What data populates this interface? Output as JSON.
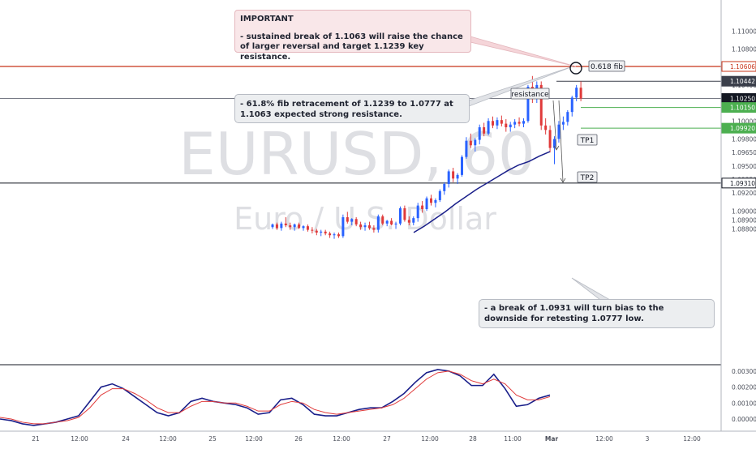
{
  "chart_data": [
    {
      "type": "candlestick",
      "watermark": {
        "symbol": "EURUSD, 60",
        "name": "Euro / U.S. Dollar"
      },
      "ylim": [
        1.0872,
        1.1112
      ],
      "y_ticks": [
        "1.11000",
        "1.10800",
        "1.10400",
        "1.10200",
        "1.10000",
        "1.09800",
        "1.09650",
        "1.09500",
        "1.09350",
        "1.09200",
        "1.09000",
        "1.08900",
        "1.08800"
      ],
      "x_ticks": [
        "21",
        "12:00",
        "24",
        "12:00",
        "25",
        "12:00",
        "26",
        "12:00",
        "27",
        "12:00",
        "28",
        "11:00",
        "Mar",
        "12:00",
        "3",
        "12:00"
      ],
      "price_labels": [
        {
          "value": "1.10606",
          "color": "#c8341a",
          "text_color": "#c8341a",
          "background": "#ffffff"
        },
        {
          "value": "1.10442",
          "color": "#3a3f4b",
          "text_color": "#ffffff",
          "background": "#3a3f4b"
        },
        {
          "value": "1.10250",
          "color": "#131722",
          "text_color": "#ffffff",
          "background": "#131722"
        },
        {
          "value": "1.10150",
          "color": "#4caf50",
          "text_color": "#ffffff",
          "background": "#4caf50"
        },
        {
          "value": "1.09920",
          "color": "#4caf50",
          "text_color": "#ffffff",
          "background": "#4caf50"
        },
        {
          "value": "1.09310",
          "color": "#131722",
          "text_color": "#131722",
          "background": "#ffffff"
        }
      ],
      "horizontal_lines": [
        {
          "price": 1.10606,
          "color": "#c8341a"
        },
        {
          "price": 1.10442,
          "color": "#3a3f4b"
        },
        {
          "price": 1.1025,
          "color": "#787b86"
        },
        {
          "price": 1.1015,
          "color": "#4caf50"
        },
        {
          "price": 1.0992,
          "color": "#4caf50"
        },
        {
          "price": 1.0931,
          "color": "#131722"
        }
      ],
      "labels": {
        "fib": "0.618 fib",
        "resistance": "resistance",
        "tp1": "TP1",
        "tp2": "TP2"
      },
      "colors": {
        "up": "#2962ff",
        "down": "#e03a3a",
        "moving_average": "#1a1f8a"
      },
      "moving_average": [
        [
          1.0876,
          1.0883
        ],
        [
          1.0883,
          1.0891
        ],
        [
          1.0891,
          1.0899
        ],
        [
          1.0899,
          1.0908
        ],
        [
          1.0908,
          1.0916
        ],
        [
          1.0916,
          1.0924
        ],
        [
          1.0924,
          1.0931
        ],
        [
          1.0931,
          1.0938
        ],
        [
          1.0938,
          1.0945
        ],
        [
          1.0945,
          1.0951
        ],
        [
          1.0951,
          1.0955
        ],
        [
          1.0955,
          1.0961
        ],
        [
          1.0961,
          1.0966
        ]
      ],
      "candles": [
        [
          1.0882,
          1.0886,
          1.088,
          1.0885
        ],
        [
          1.0885,
          1.0887,
          1.0879,
          1.0881
        ],
        [
          1.0881,
          1.0888,
          1.0878,
          1.0886
        ],
        [
          1.0886,
          1.0893,
          1.0882,
          1.0884
        ],
        [
          1.0884,
          1.0887,
          1.0879,
          1.0882
        ],
        [
          1.0882,
          1.0886,
          1.0878,
          1.0885
        ],
        [
          1.0885,
          1.0887,
          1.088,
          1.0881
        ],
        [
          1.0881,
          1.0884,
          1.0878,
          1.0883
        ],
        [
          1.0883,
          1.0885,
          1.0877,
          1.0879
        ],
        [
          1.0879,
          1.0882,
          1.0875,
          1.0878
        ],
        [
          1.0878,
          1.088,
          1.0873,
          1.0876
        ],
        [
          1.0876,
          1.0879,
          1.0872,
          1.0877
        ],
        [
          1.0877,
          1.0879,
          1.0873,
          1.0875
        ],
        [
          1.0875,
          1.0877,
          1.087,
          1.0873
        ],
        [
          1.0873,
          1.0876,
          1.0869,
          1.0874
        ],
        [
          1.0874,
          1.0876,
          1.087,
          1.0872
        ],
        [
          1.0872,
          1.0896,
          1.087,
          1.0893
        ],
        [
          1.0893,
          1.0899,
          1.0886,
          1.0888
        ],
        [
          1.0888,
          1.0892,
          1.0884,
          1.0891
        ],
        [
          1.0891,
          1.0893,
          1.0883,
          1.0885
        ],
        [
          1.0885,
          1.0888,
          1.0879,
          1.0882
        ],
        [
          1.0882,
          1.0887,
          1.0878,
          1.0884
        ],
        [
          1.0884,
          1.0888,
          1.0879,
          1.0881
        ],
        [
          1.0881,
          1.0884,
          1.0876,
          1.0879
        ],
        [
          1.0879,
          1.0896,
          1.0876,
          1.0894
        ],
        [
          1.0894,
          1.0896,
          1.0884,
          1.0886
        ],
        [
          1.0886,
          1.089,
          1.0883,
          1.0889
        ],
        [
          1.0889,
          1.0892,
          1.0884,
          1.0885
        ],
        [
          1.0885,
          1.0888,
          1.088,
          1.0886
        ],
        [
          1.0886,
          1.0905,
          1.0884,
          1.0903
        ],
        [
          1.0903,
          1.0906,
          1.0888,
          1.089
        ],
        [
          1.089,
          1.0894,
          1.0884,
          1.0887
        ],
        [
          1.0887,
          1.0894,
          1.0884,
          1.0892
        ],
        [
          1.0892,
          1.0909,
          1.0888,
          1.0906
        ],
        [
          1.0906,
          1.0911,
          1.0898,
          1.0902
        ],
        [
          1.0902,
          1.0916,
          1.09,
          1.0914
        ],
        [
          1.0914,
          1.0918,
          1.0906,
          1.0909
        ],
        [
          1.0909,
          1.0914,
          1.0904,
          1.0912
        ],
        [
          1.0912,
          1.0924,
          1.091,
          1.0922
        ],
        [
          1.0922,
          1.0932,
          1.0918,
          1.093
        ],
        [
          1.093,
          1.0946,
          1.0926,
          1.0944
        ],
        [
          1.0944,
          1.0948,
          1.0932,
          1.0936
        ],
        [
          1.0936,
          1.0942,
          1.093,
          1.094
        ],
        [
          1.094,
          1.0962,
          1.0938,
          1.096
        ],
        [
          1.096,
          1.0982,
          1.0958,
          1.0978
        ],
        [
          1.0978,
          1.0986,
          1.097,
          1.0973
        ],
        [
          1.0973,
          1.0981,
          1.0966,
          1.0979
        ],
        [
          1.0979,
          1.0996,
          1.0974,
          1.0993
        ],
        [
          1.0993,
          1.0998,
          1.0983,
          1.0986
        ],
        [
          1.0986,
          1.1003,
          1.0984,
          1.1
        ],
        [
          1.1,
          1.1005,
          1.0992,
          1.0995
        ],
        [
          1.0995,
          1.1004,
          1.0991,
          1.1001
        ],
        [
          1.1001,
          1.1006,
          1.0994,
          1.0997
        ],
        [
          1.0997,
          1.1002,
          1.0988,
          1.0993
        ],
        [
          1.0993,
          1.0999,
          1.0988,
          1.0996
        ],
        [
          1.0996,
          1.1002,
          1.0992,
          1.0999
        ],
        [
          1.0999,
          1.1004,
          1.0994,
          1.0997
        ],
        [
          1.0997,
          1.1003,
          1.0993,
          1.1
        ],
        [
          1.1,
          1.104,
          1.0998,
          1.1038
        ],
        [
          1.1038,
          1.105,
          1.102,
          1.1026
        ],
        [
          1.1026,
          1.1044,
          1.102,
          1.104
        ],
        [
          1.104,
          1.1044,
          1.099,
          1.0995
        ],
        [
          1.0995,
          1.1003,
          1.0985,
          1.099
        ],
        [
          1.099,
          1.0995,
          1.0965,
          1.097
        ],
        [
          1.097,
          1.0983,
          1.0952,
          1.098
        ],
        [
          1.098,
          1.1,
          1.0976,
          1.0996
        ],
        [
          1.0996,
          1.1005,
          1.099,
          1.0999
        ],
        [
          1.0999,
          1.1012,
          1.0995,
          1.101
        ],
        [
          1.101,
          1.1028,
          1.1005,
          1.1026
        ],
        [
          1.1026,
          1.104,
          1.1022,
          1.1037
        ],
        [
          1.1037,
          1.1044,
          1.1022,
          1.1025
        ]
      ]
    },
    {
      "type": "line",
      "y_ticks": [
        "0.00300",
        "0.00200",
        "0.00100",
        "0.00000"
      ],
      "ylim": [
        -0.0006,
        0.0034
      ],
      "series": [
        {
          "color": "#1a1f8a",
          "values": [
            0.0,
            -0.0001,
            -0.0003,
            -0.0004,
            -0.0003,
            -0.0002,
            0.0,
            0.0002,
            0.0011,
            0.002,
            0.0022,
            0.0019,
            0.0014,
            0.0009,
            0.0004,
            0.0002,
            0.0004,
            0.0011,
            0.0013,
            0.0011,
            0.001,
            0.0009,
            0.0007,
            0.0003,
            0.0004,
            0.0012,
            0.0013,
            0.0009,
            0.0003,
            0.0002,
            0.0002,
            0.0004,
            0.0006,
            0.0007,
            0.0007,
            0.0011,
            0.0016,
            0.0023,
            0.0029,
            0.0031,
            0.003,
            0.0027,
            0.0021,
            0.0021,
            0.0028,
            0.0019,
            0.0008,
            0.0009,
            0.0013,
            0.0015
          ]
        },
        {
          "color": "#e03a3a",
          "values": [
            0.0001,
            0.0,
            -0.0002,
            -0.0003,
            -0.0003,
            -0.0002,
            -0.0001,
            0.0001,
            0.0007,
            0.0015,
            0.0019,
            0.0019,
            0.0016,
            0.0012,
            0.0007,
            0.0004,
            0.0004,
            0.0008,
            0.0011,
            0.0011,
            0.001,
            0.001,
            0.0008,
            0.0005,
            0.0005,
            0.0009,
            0.0011,
            0.001,
            0.0006,
            0.0004,
            0.0003,
            0.0004,
            0.0005,
            0.0006,
            0.0007,
            0.0009,
            0.0013,
            0.0019,
            0.0025,
            0.0029,
            0.003,
            0.0028,
            0.0024,
            0.0022,
            0.0025,
            0.0022,
            0.0015,
            0.0012,
            0.0012,
            0.0014
          ]
        }
      ]
    }
  ],
  "annotations": {
    "important_title": "IMPORTANT",
    "important_body": "- sustained break of 1.1063 will raise the chance of larger reversal and target 1.1239 key resistance.",
    "fib_note": "- 61.8% fib retracement of 1.1239 to 1.0777 at 1.1063 expected strong resistance.",
    "break_note": "- a break of 1.0931 will turn bias to the downside for retesting 1.0777 low."
  }
}
